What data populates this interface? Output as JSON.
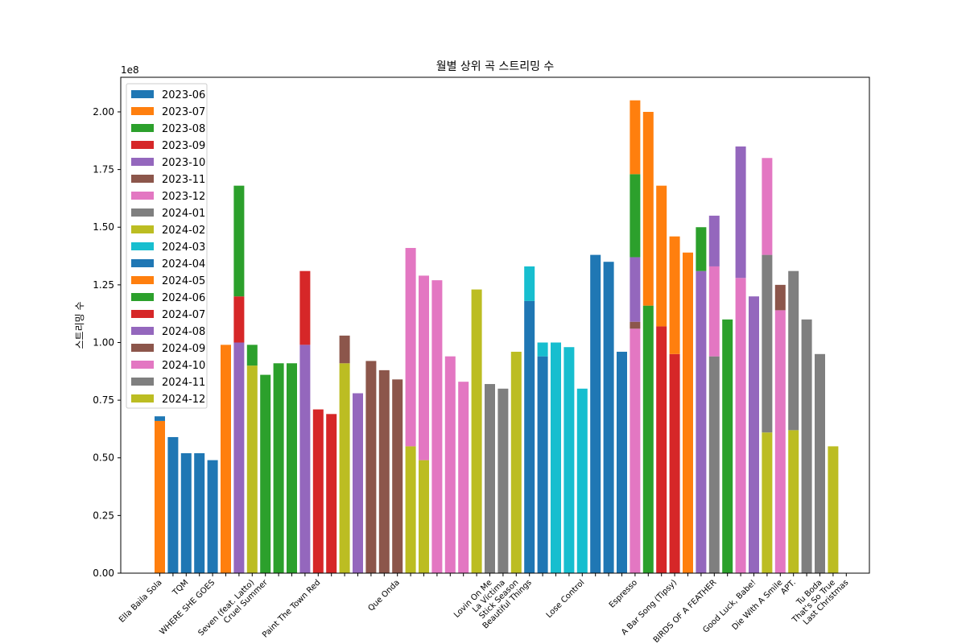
{
  "chart_data": {
    "type": "bar",
    "stacked": true,
    "title": "월별 상위 곡 스트리밍 수",
    "xlabel": "",
    "ylabel": "스트리밍 수",
    "y_multiplier_label": "1e8",
    "ylim": [
      0,
      2.15
    ],
    "yticks": [
      "0.00",
      "0.25",
      "0.50",
      "0.75",
      "1.00",
      "1.25",
      "1.50",
      "1.75",
      "2.00"
    ],
    "grid": false,
    "legend_position": "top-left",
    "legend": [
      {
        "label": "2023-06",
        "color": "#1f77b4"
      },
      {
        "label": "2023-07",
        "color": "#ff7f0e"
      },
      {
        "label": "2023-08",
        "color": "#2ca02c"
      },
      {
        "label": "2023-09",
        "color": "#d62728"
      },
      {
        "label": "2023-10",
        "color": "#9467bd"
      },
      {
        "label": "2023-11",
        "color": "#8c564b"
      },
      {
        "label": "2023-12",
        "color": "#e377c2"
      },
      {
        "label": "2024-01",
        "color": "#7f7f7f"
      },
      {
        "label": "2024-02",
        "color": "#bcbd22"
      },
      {
        "label": "2024-03",
        "color": "#17becf"
      },
      {
        "label": "2024-04",
        "color": "#1f77b4"
      },
      {
        "label": "2024-05",
        "color": "#ff7f0e"
      },
      {
        "label": "2024-06",
        "color": "#2ca02c"
      },
      {
        "label": "2024-07",
        "color": "#d62728"
      },
      {
        "label": "2024-08",
        "color": "#9467bd"
      },
      {
        "label": "2024-09",
        "color": "#8c564b"
      },
      {
        "label": "2024-10",
        "color": "#e377c2"
      },
      {
        "label": "2024-11",
        "color": "#7f7f7f"
      },
      {
        "label": "2024-12",
        "color": "#bcbd22"
      }
    ],
    "bars": [
      {
        "label": "Ella Baila Sola",
        "segments": [
          {
            "m": 1,
            "v": 0.66
          },
          {
            "m": 0,
            "v": 0.02
          }
        ]
      },
      {
        "label": "",
        "segments": [
          {
            "m": 0,
            "v": 0.59
          }
        ]
      },
      {
        "label": "TQM",
        "segments": [
          {
            "m": 0,
            "v": 0.52
          }
        ]
      },
      {
        "label": "",
        "segments": [
          {
            "m": 0,
            "v": 0.52
          }
        ]
      },
      {
        "label": "WHERE SHE GOES",
        "segments": [
          {
            "m": 0,
            "v": 0.49
          }
        ]
      },
      {
        "label": "",
        "segments": [
          {
            "m": 1,
            "v": 0.99
          }
        ]
      },
      {
        "label": "",
        "segments": [
          {
            "m": 4,
            "v": 1.0
          },
          {
            "m": 3,
            "v": 0.2
          },
          {
            "m": 2,
            "v": 0.48
          }
        ]
      },
      {
        "label": "Seven (feat. Latto)",
        "segments": [
          {
            "m": 8,
            "v": 0.9
          },
          {
            "m": 2,
            "v": 0.09
          }
        ]
      },
      {
        "label": "Cruel Summer",
        "segments": [
          {
            "m": 2,
            "v": 0.86
          }
        ]
      },
      {
        "label": "",
        "segments": [
          {
            "m": 2,
            "v": 0.91
          }
        ]
      },
      {
        "label": "",
        "segments": [
          {
            "m": 2,
            "v": 0.91
          }
        ]
      },
      {
        "label": "",
        "segments": [
          {
            "m": 4,
            "v": 0.99
          },
          {
            "m": 3,
            "v": 0.32
          }
        ]
      },
      {
        "label": "Paint The Town Red",
        "segments": [
          {
            "m": 3,
            "v": 0.71
          }
        ]
      },
      {
        "label": "",
        "segments": [
          {
            "m": 3,
            "v": 0.69
          }
        ]
      },
      {
        "label": "",
        "segments": [
          {
            "m": 8,
            "v": 0.91
          },
          {
            "m": 5,
            "v": 0.12
          }
        ]
      },
      {
        "label": "",
        "segments": [
          {
            "m": 4,
            "v": 0.78
          }
        ]
      },
      {
        "label": "",
        "segments": [
          {
            "m": 5,
            "v": 0.92
          }
        ]
      },
      {
        "label": "",
        "segments": [
          {
            "m": 5,
            "v": 0.88
          }
        ]
      },
      {
        "label": "Que Onda",
        "segments": [
          {
            "m": 5,
            "v": 0.84
          }
        ]
      },
      {
        "label": "",
        "segments": [
          {
            "m": 8,
            "v": 0.55
          },
          {
            "m": 6,
            "v": 0.86
          }
        ]
      },
      {
        "label": "",
        "segments": [
          {
            "m": 8,
            "v": 0.49
          },
          {
            "m": 6,
            "v": 0.8
          }
        ]
      },
      {
        "label": "",
        "segments": [
          {
            "m": 6,
            "v": 1.27
          }
        ]
      },
      {
        "label": "",
        "segments": [
          {
            "m": 6,
            "v": 0.94
          }
        ]
      },
      {
        "label": "",
        "segments": [
          {
            "m": 6,
            "v": 0.83
          }
        ]
      },
      {
        "label": "",
        "segments": [
          {
            "m": 8,
            "v": 1.23
          }
        ]
      },
      {
        "label": "Lovin On Me",
        "segments": [
          {
            "m": 7,
            "v": 0.82
          }
        ]
      },
      {
        "label": "La Víctima",
        "segments": [
          {
            "m": 7,
            "v": 0.8
          }
        ]
      },
      {
        "label": "Stick Season",
        "segments": [
          {
            "m": 8,
            "v": 0.96
          }
        ]
      },
      {
        "label": "Beautiful Things",
        "segments": [
          {
            "m": 0,
            "v": 1.18
          },
          {
            "m": 9,
            "v": 0.15
          }
        ]
      },
      {
        "label": "",
        "segments": [
          {
            "m": 0,
            "v": 0.94
          },
          {
            "m": 9,
            "v": 0.06
          }
        ]
      },
      {
        "label": "",
        "segments": [
          {
            "m": 9,
            "v": 1.0
          }
        ]
      },
      {
        "label": "",
        "segments": [
          {
            "m": 9,
            "v": 0.98
          }
        ]
      },
      {
        "label": "Lose Control",
        "segments": [
          {
            "m": 9,
            "v": 0.8
          }
        ]
      },
      {
        "label": "",
        "segments": [
          {
            "m": 0,
            "v": 1.38
          }
        ]
      },
      {
        "label": "",
        "segments": [
          {
            "m": 0,
            "v": 1.35
          }
        ]
      },
      {
        "label": "",
        "segments": [
          {
            "m": 0,
            "v": 0.96
          }
        ]
      },
      {
        "label": "Espresso",
        "segments": [
          {
            "m": 6,
            "v": 1.06
          },
          {
            "m": 5,
            "v": 0.03
          },
          {
            "m": 4,
            "v": 0.28
          },
          {
            "m": 2,
            "v": 0.36
          },
          {
            "m": 1,
            "v": 0.32
          }
        ]
      },
      {
        "label": "",
        "segments": [
          {
            "m": 2,
            "v": 1.16
          },
          {
            "m": 1,
            "v": 0.84
          }
        ]
      },
      {
        "label": "",
        "segments": [
          {
            "m": 3,
            "v": 1.07
          },
          {
            "m": 1,
            "v": 0.61
          }
        ]
      },
      {
        "label": "A Bar Song (Tipsy)",
        "segments": [
          {
            "m": 3,
            "v": 0.95
          },
          {
            "m": 1,
            "v": 0.51
          }
        ]
      },
      {
        "label": "",
        "segments": [
          {
            "m": 1,
            "v": 1.39
          }
        ]
      },
      {
        "label": "",
        "segments": [
          {
            "m": 4,
            "v": 1.31
          },
          {
            "m": 2,
            "v": 0.19
          }
        ]
      },
      {
        "label": "BIRDS OF A FEATHER",
        "segments": [
          {
            "m": 7,
            "v": 0.94
          },
          {
            "m": 6,
            "v": 0.39
          },
          {
            "m": 4,
            "v": 0.22
          }
        ]
      },
      {
        "label": "",
        "segments": [
          {
            "m": 2,
            "v": 1.1
          }
        ]
      },
      {
        "label": "",
        "segments": [
          {
            "m": 6,
            "v": 1.28
          },
          {
            "m": 4,
            "v": 0.57
          }
        ]
      },
      {
        "label": "Good Luck, Babe!",
        "segments": [
          {
            "m": 4,
            "v": 1.2
          }
        ]
      },
      {
        "label": "",
        "segments": [
          {
            "m": 8,
            "v": 0.61
          },
          {
            "m": 7,
            "v": 0.77
          },
          {
            "m": 6,
            "v": 0.42
          }
        ]
      },
      {
        "label": "Die With A Smile",
        "segments": [
          {
            "m": 6,
            "v": 1.14
          },
          {
            "m": 5,
            "v": 0.11
          }
        ]
      },
      {
        "label": "APT.",
        "segments": [
          {
            "m": 8,
            "v": 0.62
          },
          {
            "m": 7,
            "v": 0.69
          }
        ]
      },
      {
        "label": "",
        "segments": [
          {
            "m": 7,
            "v": 1.1
          }
        ]
      },
      {
        "label": "Tu Boda",
        "segments": [
          {
            "m": 7,
            "v": 0.95
          }
        ]
      },
      {
        "label": "That's So True",
        "segments": [
          {
            "m": 8,
            "v": 0.55
          }
        ]
      },
      {
        "label": "Last Christmas",
        "segments": []
      }
    ]
  }
}
